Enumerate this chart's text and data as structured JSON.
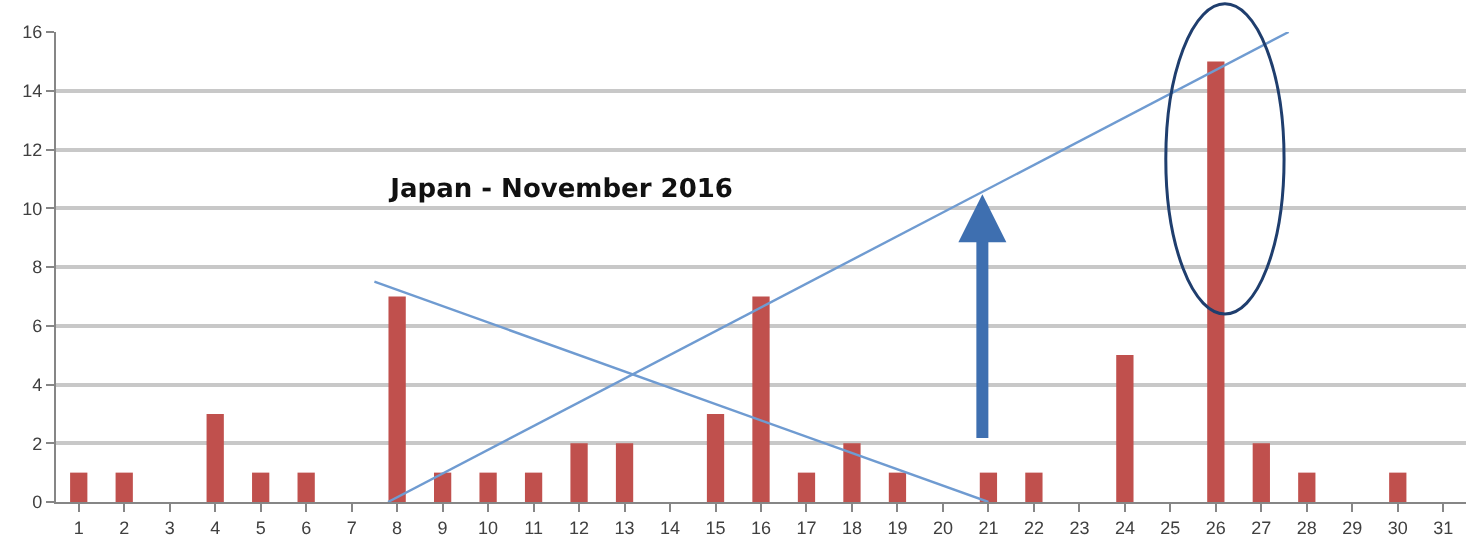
{
  "chart_data": {
    "type": "bar",
    "title": "Japan - November 2016",
    "x": [
      1,
      2,
      3,
      4,
      5,
      6,
      7,
      8,
      9,
      10,
      11,
      12,
      13,
      14,
      15,
      16,
      17,
      18,
      19,
      20,
      21,
      22,
      23,
      24,
      25,
      26,
      27,
      28,
      29,
      30,
      31
    ],
    "xlim": [
      0.5,
      31.5
    ],
    "xticks": [
      1,
      2,
      3,
      4,
      5,
      6,
      7,
      8,
      9,
      10,
      11,
      12,
      13,
      14,
      15,
      16,
      17,
      18,
      19,
      20,
      21,
      22,
      23,
      24,
      25,
      26,
      27,
      28,
      29,
      30,
      31
    ],
    "ylim": [
      0,
      16
    ],
    "yticks": [
      0,
      2,
      4,
      6,
      8,
      10,
      12,
      14,
      16
    ],
    "grid": "y",
    "series": [
      {
        "color": "#c0504d",
        "values": [
          1,
          1,
          0,
          3,
          1,
          1,
          0,
          7,
          1,
          1,
          1,
          2,
          2,
          0,
          3,
          7,
          1,
          2,
          1,
          0,
          1,
          1,
          0,
          5,
          0,
          15,
          2,
          1,
          0,
          1,
          0
        ]
      },
      {
        "type": "line",
        "color": "#6f9bd1",
        "x": [
          7.5,
          21
        ],
        "values": [
          7.5,
          0
        ]
      },
      {
        "type": "line",
        "color": "#6f9bd1",
        "x": [
          7.8,
          27.6
        ],
        "values": [
          0,
          16
        ]
      }
    ]
  }
}
